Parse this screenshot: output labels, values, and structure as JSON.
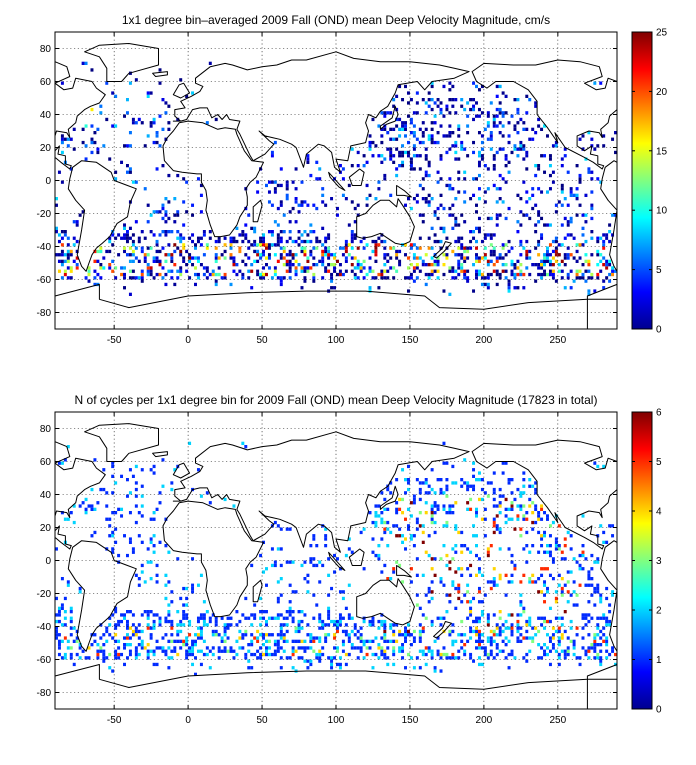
{
  "chart_data": [
    {
      "type": "heatmap",
      "title": "1x1 degree bin–averaged 2009 Fall (OND) mean Deep Velocity Magnitude, cm/s",
      "xlabel": "",
      "ylabel": "",
      "xlim": [
        -90,
        290
      ],
      "ylim": [
        -90,
        90
      ],
      "xticks": [
        "-50",
        "0",
        "50",
        "100",
        "150",
        "200",
        "250"
      ],
      "xtick_values": [
        -50,
        0,
        50,
        100,
        150,
        200,
        250
      ],
      "yticks": [
        "80",
        "60",
        "40",
        "20",
        "0",
        "-20",
        "-40",
        "-60",
        "-80"
      ],
      "ytick_values": [
        80,
        60,
        40,
        20,
        0,
        -20,
        -40,
        -60,
        -80
      ],
      "grid": true,
      "colormap": "jet",
      "colorbar": {
        "min": 0,
        "max": 25,
        "ticks": [
          "25",
          "20",
          "15",
          "10",
          "5",
          "0"
        ],
        "tick_values": [
          25,
          20,
          15,
          10,
          5,
          0
        ]
      },
      "description_of_values": "sparse 1x1 degree bins, mostly 0-6 cm/s; highest values (15-25) along Southern Ocean ~40-60S and western boundary currents"
    },
    {
      "type": "heatmap",
      "title": "N of cycles per 1x1 degree bin for 2009 Fall (OND) mean Deep Velocity Magnitude (17823 in total)",
      "xlabel": "",
      "ylabel": "",
      "xlim": [
        -90,
        290
      ],
      "ylim": [
        -90,
        90
      ],
      "xticks": [
        "-50",
        "0",
        "50",
        "100",
        "150",
        "200",
        "250"
      ],
      "xtick_values": [
        -50,
        0,
        50,
        100,
        150,
        200,
        250
      ],
      "yticks": [
        "80",
        "60",
        "40",
        "20",
        "0",
        "-20",
        "-40",
        "-60",
        "-80"
      ],
      "ytick_values": [
        80,
        60,
        40,
        20,
        0,
        -20,
        -40,
        -60,
        -80
      ],
      "grid": true,
      "colormap": "jet",
      "colorbar": {
        "min": 0,
        "max": 6,
        "ticks": [
          "6",
          "5",
          "4",
          "3",
          "2",
          "1",
          "0"
        ],
        "tick_values": [
          6,
          5,
          4,
          3,
          2,
          1,
          0
        ]
      },
      "total_cycles": 17823,
      "description_of_values": "sparse 1x1 degree bins, mostly 1-2 cycles; more cycles (3-6) in the central Pacific and Indian Ocean"
    }
  ]
}
